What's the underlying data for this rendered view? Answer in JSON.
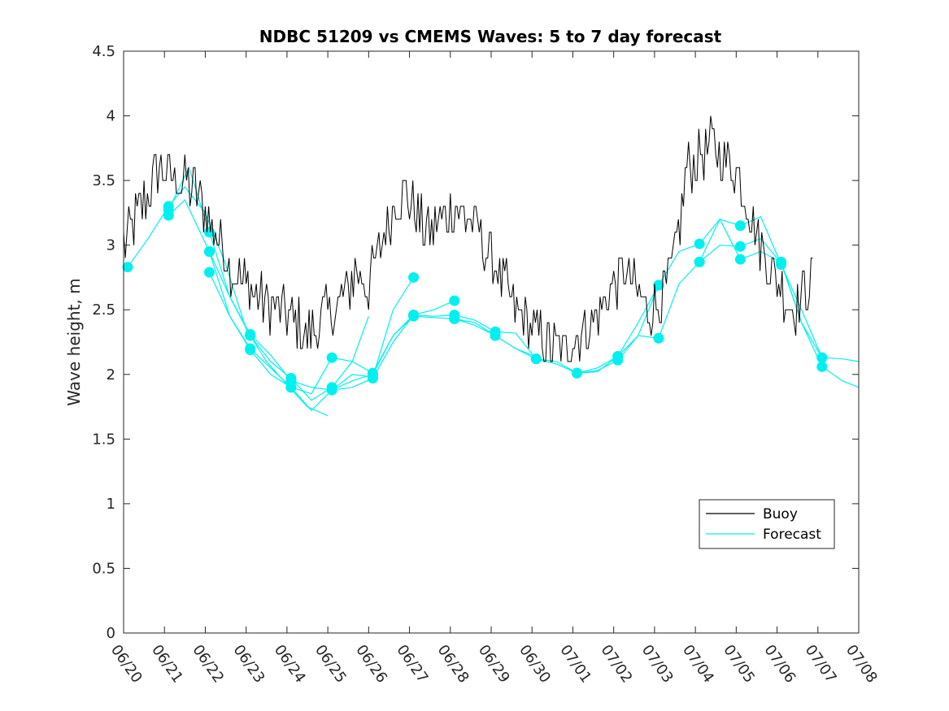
{
  "chart_data": {
    "type": "line",
    "title": "NDBC 51209 vs CMEMS Waves: 5 to 7 day forecast",
    "xlabel": "",
    "ylabel": "Wave height, m",
    "xlim": [
      "06/20",
      "07/08"
    ],
    "ylim": [
      0,
      4.5
    ],
    "xticks": [
      "06/20",
      "06/21",
      "06/22",
      "06/23",
      "06/24",
      "06/25",
      "06/26",
      "06/27",
      "06/28",
      "06/29",
      "06/30",
      "07/01",
      "07/02",
      "07/03",
      "07/04",
      "07/05",
      "07/06",
      "07/07",
      "07/08"
    ],
    "yticks": [
      "0",
      "0.5",
      "1",
      "1.5",
      "2",
      "2.5",
      "3",
      "3.5",
      "4",
      "4.5"
    ],
    "grid": false,
    "legend": {
      "position": "lower-right",
      "entries": [
        "Buoy",
        "Forecast"
      ]
    },
    "colors": {
      "buoy": "#000000",
      "forecast": "#00f0f0",
      "axes": "#262626"
    },
    "series": [
      {
        "name": "Buoy",
        "x_days_from_06_20": [
          0.0,
          0.3,
          0.6,
          0.9,
          1.2,
          1.5,
          1.8,
          2.1,
          2.4,
          2.7,
          3.0,
          3.3,
          3.6,
          3.9,
          4.2,
          4.5,
          4.8,
          5.1,
          5.4,
          5.7,
          6.0,
          6.3,
          6.6,
          6.9,
          7.2,
          7.5,
          7.8,
          8.1,
          8.4,
          8.7,
          9.0,
          9.3,
          9.6,
          9.9,
          10.2,
          10.5,
          10.8,
          11.1,
          11.4,
          11.7,
          12.0,
          12.3,
          12.6,
          12.9,
          13.2,
          13.5,
          13.8,
          14.1,
          14.4,
          14.7,
          15.0,
          15.3,
          15.6,
          15.9,
          16.2,
          16.5,
          16.9
        ],
        "y": [
          3.0,
          3.2,
          3.4,
          3.6,
          3.5,
          3.5,
          3.4,
          3.2,
          3.0,
          2.8,
          2.7,
          2.6,
          2.5,
          2.5,
          2.4,
          2.3,
          2.4,
          2.5,
          2.6,
          2.8,
          2.7,
          3.0,
          3.3,
          3.4,
          3.2,
          3.1,
          3.2,
          3.3,
          3.2,
          3.1,
          2.9,
          2.7,
          2.5,
          2.4,
          2.3,
          2.2,
          2.2,
          2.3,
          2.4,
          2.5,
          2.7,
          2.8,
          2.6,
          2.5,
          2.6,
          2.9,
          3.6,
          3.7,
          3.8,
          3.7,
          3.6,
          3.3,
          3.0,
          2.8,
          2.6,
          2.5,
          2.8
        ]
      },
      {
        "name": "Forecast",
        "runs": [
          {
            "x": [
              0.1,
              0.6,
              1.1,
              1.5,
              2.0,
              2.5,
              3.0,
              3.5,
              4.0,
              4.5,
              5.0
            ],
            "y": [
              2.83,
              3.05,
              3.3,
              3.45,
              3.25,
              2.85,
              2.35,
              2.1,
              1.92,
              1.75,
              1.68
            ]
          },
          {
            "x": [
              1.1,
              1.6,
              2.1,
              2.6,
              3.1,
              3.6,
              4.1,
              4.6,
              5.1,
              5.6,
              6.0
            ],
            "y": [
              3.27,
              3.6,
              3.1,
              2.6,
              2.3,
              2.1,
              1.97,
              1.8,
              1.9,
              2.1,
              2.45
            ]
          },
          {
            "x": [
              1.1,
              1.5,
              2.1,
              2.6,
              3.1,
              3.6,
              4.1,
              4.6,
              5.1,
              5.6,
              6.1,
              6.6,
              7.1
            ],
            "y": [
              3.23,
              3.35,
              2.95,
              2.45,
              2.2,
              2.05,
              1.9,
              1.72,
              1.88,
              2.0,
              1.98,
              2.5,
              2.75
            ]
          },
          {
            "x": [
              2.1,
              2.6,
              3.1,
              3.6,
              4.1,
              4.6,
              5.1,
              5.6,
              6.1,
              6.6,
              7.1,
              7.6,
              8.1
            ],
            "y": [
              2.95,
              2.6,
              2.31,
              2.15,
              1.95,
              1.9,
              1.88,
              1.95,
              2.0,
              2.3,
              2.46,
              2.5,
              2.57
            ]
          },
          {
            "x": [
              2.1,
              2.6,
              3.1,
              3.6,
              4.1,
              4.6,
              5.1,
              5.6,
              6.1,
              6.6,
              7.1,
              7.6,
              8.1,
              8.6,
              9.1,
              9.6,
              10.0
            ],
            "y": [
              2.79,
              2.45,
              2.19,
              2.0,
              1.9,
              1.85,
              2.13,
              2.1,
              2.01,
              2.3,
              2.45,
              2.44,
              2.43,
              2.38,
              2.3,
              2.2,
              2.15
            ]
          },
          {
            "x": [
              5.1,
              5.6,
              6.1,
              6.6,
              7.1,
              7.6,
              8.1,
              8.6,
              9.1,
              9.6,
              10.1,
              10.6,
              11.1,
              11.6,
              12.1,
              12.6,
              13.1
            ],
            "y": [
              1.88,
              1.9,
              1.97,
              2.25,
              2.46,
              2.45,
              2.46,
              2.42,
              2.33,
              2.32,
              2.12,
              2.1,
              2.01,
              2.02,
              2.14,
              2.3,
              2.69
            ]
          },
          {
            "x": [
              8.1,
              8.6,
              9.1,
              9.6,
              10.1,
              10.6,
              11.1,
              11.6,
              12.1,
              12.6,
              13.1,
              13.6,
              14.1,
              14.6,
              15.1,
              15.6,
              16.1,
              16.6,
              17.1
            ],
            "y": [
              2.43,
              2.4,
              2.3,
              2.2,
              2.12,
              2.08,
              2.01,
              2.03,
              2.11,
              2.3,
              2.28,
              2.7,
              2.87,
              3.0,
              2.99,
              3.05,
              2.86,
              2.4,
              2.13
            ]
          },
          {
            "x": [
              11.1,
              11.6,
              12.1,
              12.6,
              13.1,
              13.6,
              14.1,
              14.6,
              15.1,
              15.6,
              16.1,
              16.6,
              17.1,
              17.6,
              18.0
            ],
            "y": [
              2.01,
              2.05,
              2.14,
              2.4,
              2.69,
              2.95,
              3.01,
              3.2,
              2.89,
              2.95,
              2.87,
              2.4,
              2.06,
              1.95,
              1.9
            ]
          },
          {
            "x": [
              14.1,
              14.6,
              15.1,
              15.6,
              16.1,
              16.6,
              17.1,
              17.6,
              18.0
            ],
            "y": [
              2.87,
              3.2,
              3.15,
              3.22,
              2.85,
              2.5,
              2.13,
              2.12,
              2.1
            ]
          }
        ]
      }
    ]
  },
  "legend": {
    "buoy_label": "Buoy",
    "forecast_label": "Forecast"
  }
}
